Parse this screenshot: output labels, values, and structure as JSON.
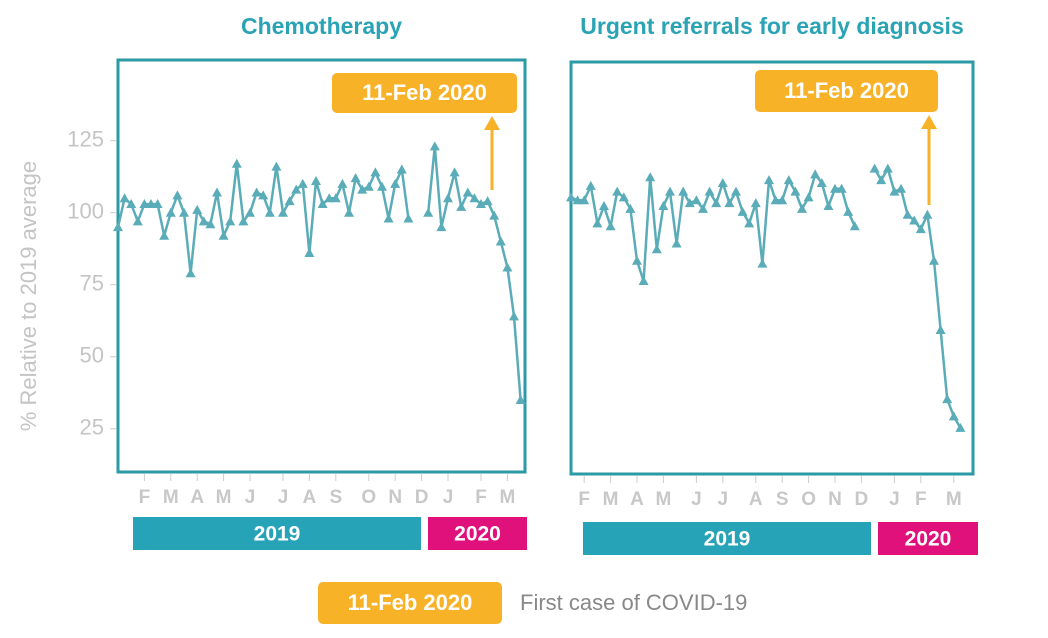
{
  "chart_data": [
    {
      "type": "line",
      "title": "Chemotherapy",
      "color": "#5aacb8",
      "categories": [
        null,
        null,
        null,
        null,
        "F",
        null,
        null,
        null,
        "M",
        null,
        null,
        null,
        "A",
        null,
        null,
        null,
        "M",
        null,
        null,
        null,
        "J",
        null,
        null,
        null,
        null,
        "J",
        null,
        null,
        null,
        "A",
        null,
        null,
        null,
        "S",
        null,
        null,
        null,
        null,
        "O",
        null,
        null,
        null,
        "N",
        null,
        null,
        null,
        "D",
        null,
        null,
        null,
        "J",
        null,
        null,
        null,
        null,
        "F",
        null,
        null,
        null,
        "M",
        null,
        null
      ],
      "values": [
        95,
        105,
        103,
        97,
        103,
        103,
        103,
        92,
        100,
        106,
        100,
        79,
        101,
        97,
        96,
        107,
        92,
        97,
        117,
        97,
        100,
        107,
        106,
        100,
        116,
        100,
        104,
        108,
        110,
        86,
        111,
        103,
        105,
        105,
        110,
        100,
        112,
        108,
        109,
        114,
        109,
        98,
        110,
        115,
        98,
        null,
        null,
        100,
        123,
        95,
        105,
        114,
        102,
        107,
        105,
        103,
        104,
        99,
        90,
        81,
        64,
        35
      ],
      "ylim": [
        10,
        153
      ],
      "yticks": [
        25,
        50,
        75,
        100,
        125
      ],
      "annotation": "11-Feb 2020",
      "years": [
        "2019",
        "2020"
      ]
    },
    {
      "type": "line",
      "title": "Urgent referrals for early diagnosis",
      "color": "#5aacb8",
      "categories": [
        null,
        null,
        "F",
        null,
        null,
        null,
        "M",
        null,
        null,
        null,
        "A",
        null,
        null,
        null,
        "M",
        null,
        null,
        null,
        null,
        "J",
        null,
        null,
        null,
        "J",
        null,
        null,
        null,
        null,
        "A",
        null,
        null,
        null,
        "S",
        null,
        null,
        null,
        "O",
        null,
        null,
        null,
        "N",
        null,
        null,
        null,
        "D",
        null,
        null,
        null,
        null,
        "J",
        null,
        null,
        null,
        "F",
        null,
        null,
        null,
        null,
        "M",
        null
      ],
      "values": [
        106,
        105,
        105,
        110,
        97,
        103,
        96,
        108,
        106,
        102,
        84,
        77,
        113,
        88,
        103,
        108,
        90,
        108,
        104,
        105,
        102,
        108,
        104,
        111,
        104,
        108,
        101,
        97,
        104,
        83,
        112,
        105,
        105,
        112,
        108,
        102,
        106,
        114,
        111,
        103,
        109,
        109,
        101,
        96,
        null,
        null,
        116,
        112,
        116,
        108,
        109,
        100,
        98,
        95,
        100,
        84,
        60,
        36,
        30,
        26
      ],
      "ylim": [
        10,
        153
      ],
      "annotation": "11-Feb 2020",
      "years": [
        "2019",
        "2020"
      ]
    }
  ],
  "y_label": "% Relative to 2019 average",
  "legend": {
    "label": "11-Feb 2020",
    "text": "First case of COVID-19"
  }
}
